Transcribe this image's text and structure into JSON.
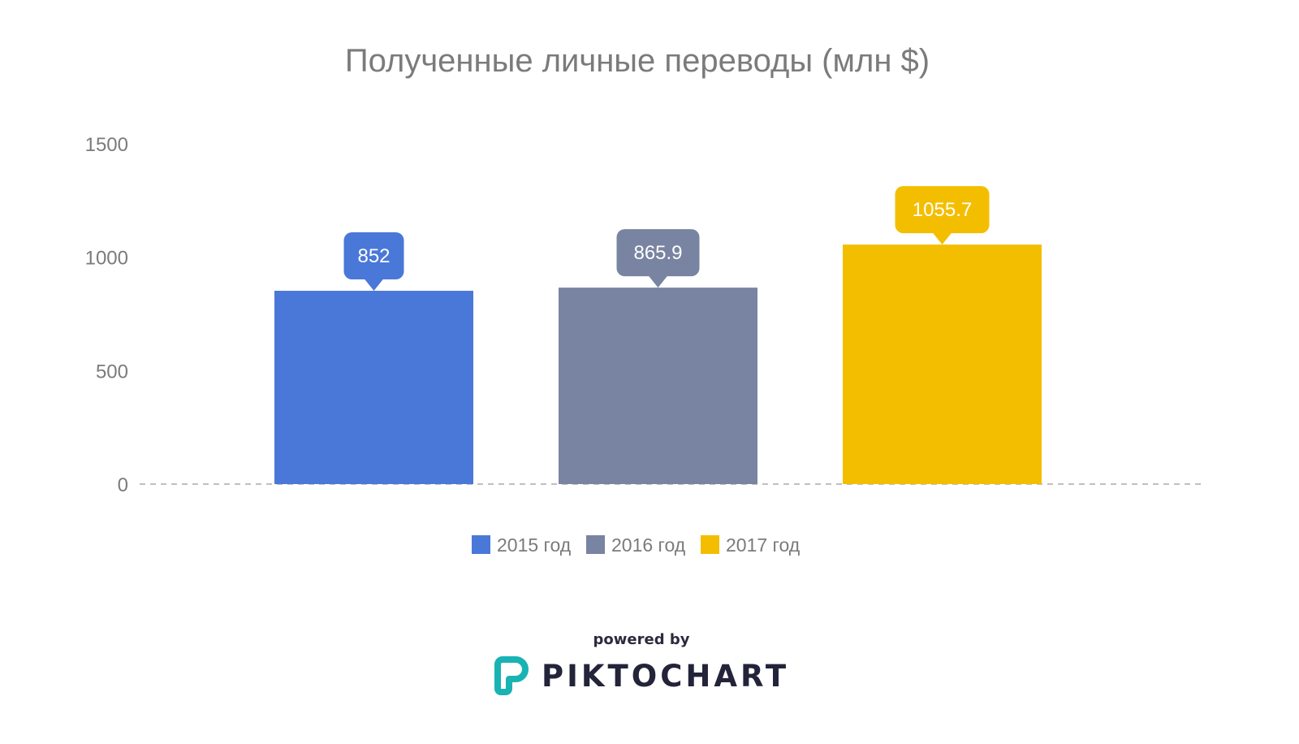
{
  "chart_data": {
    "type": "bar",
    "title": "Полученные личные переводы (млн $)",
    "categories": [
      "2015 год",
      "2016 год",
      "2017 год"
    ],
    "values": [
      852,
      865.9,
      1055.7
    ],
    "value_labels": [
      "852",
      "865.9",
      "1055.7"
    ],
    "colors": [
      "#4a78d8",
      "#7884a1",
      "#f4be00"
    ],
    "ylim": [
      0,
      1500
    ],
    "yticks": [
      0,
      500,
      1000,
      1500
    ],
    "xlabel": "",
    "ylabel": "",
    "legend_position": "bottom",
    "grid": false
  },
  "footer": {
    "powered_by": "powered by",
    "brand": "PIKTOCHART",
    "brand_color": "#19b3b3"
  }
}
